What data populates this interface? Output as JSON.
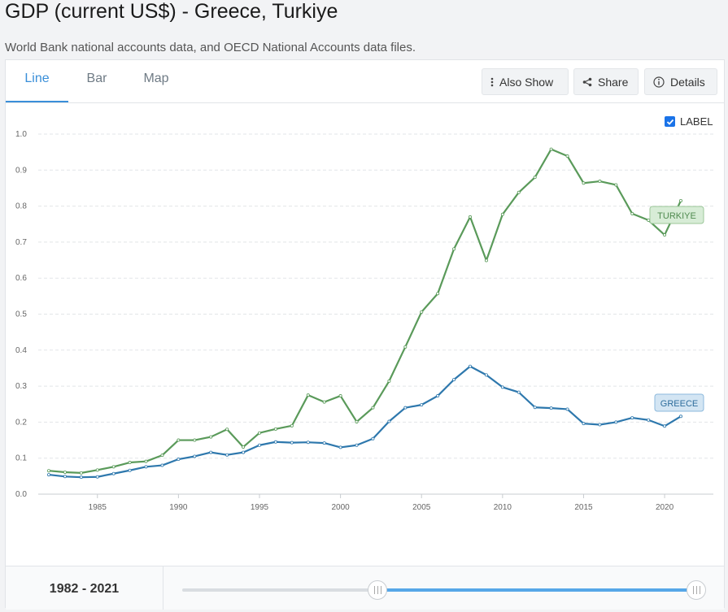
{
  "page": {
    "title": "GDP (current US$) - Greece, Turkiye",
    "subtitle": "World Bank national accounts data, and OECD National Accounts data files."
  },
  "tabs": [
    {
      "label": "Line",
      "active": true
    },
    {
      "label": "Bar",
      "active": false
    },
    {
      "label": "Map",
      "active": false
    }
  ],
  "toolbar": {
    "also_show": "Also Show",
    "share": "Share",
    "details": "Details"
  },
  "label_toggle": {
    "text": "LABEL",
    "checked": true
  },
  "range": {
    "start": "1982",
    "sep": " - ",
    "end": "2021",
    "handle_start_fraction": 0.38,
    "handle_end_fraction": 1.0
  },
  "colors": {
    "turkiye": "#5a9a5a",
    "greece": "#2e78ad",
    "accent": "#3a8fd9"
  },
  "chart_data": {
    "type": "line",
    "x_tick_labels": [
      "1985",
      "1990",
      "1995",
      "2000",
      "2005",
      "2010",
      "2015",
      "2020"
    ],
    "y_tick_labels": [
      "0.0",
      "0.1",
      "0.2",
      "0.3",
      "0.4",
      "0.5",
      "0.6",
      "0.7",
      "0.8",
      "0.9",
      "1.0"
    ],
    "xlim": [
      1982,
      2021
    ],
    "ylim": [
      0,
      1.0
    ],
    "grid": true,
    "x": [
      1982,
      1983,
      1984,
      1985,
      1986,
      1987,
      1988,
      1989,
      1990,
      1991,
      1992,
      1993,
      1994,
      1995,
      1996,
      1997,
      1998,
      1999,
      2000,
      2001,
      2002,
      2003,
      2004,
      2005,
      2006,
      2007,
      2008,
      2009,
      2010,
      2011,
      2012,
      2013,
      2014,
      2015,
      2016,
      2017,
      2018,
      2019,
      2020,
      2021
    ],
    "series": [
      {
        "name": "TURKIYE",
        "color": "#5a9a5a",
        "values": [
          0.065,
          0.061,
          0.059,
          0.067,
          0.076,
          0.088,
          0.091,
          0.108,
          0.15,
          0.15,
          0.159,
          0.18,
          0.131,
          0.17,
          0.181,
          0.19,
          0.275,
          0.256,
          0.273,
          0.201,
          0.24,
          0.314,
          0.409,
          0.506,
          0.557,
          0.681,
          0.77,
          0.649,
          0.777,
          0.838,
          0.88,
          0.958,
          0.939,
          0.864,
          0.869,
          0.859,
          0.779,
          0.761,
          0.72,
          0.815
        ]
      },
      {
        "name": "GREECE",
        "color": "#2e78ad",
        "values": [
          0.054,
          0.049,
          0.047,
          0.048,
          0.057,
          0.066,
          0.076,
          0.08,
          0.097,
          0.105,
          0.116,
          0.109,
          0.116,
          0.136,
          0.145,
          0.143,
          0.144,
          0.142,
          0.13,
          0.136,
          0.154,
          0.202,
          0.24,
          0.248,
          0.273,
          0.318,
          0.355,
          0.331,
          0.297,
          0.283,
          0.241,
          0.239,
          0.236,
          0.196,
          0.193,
          0.2,
          0.212,
          0.206,
          0.189,
          0.216
        ]
      }
    ]
  }
}
